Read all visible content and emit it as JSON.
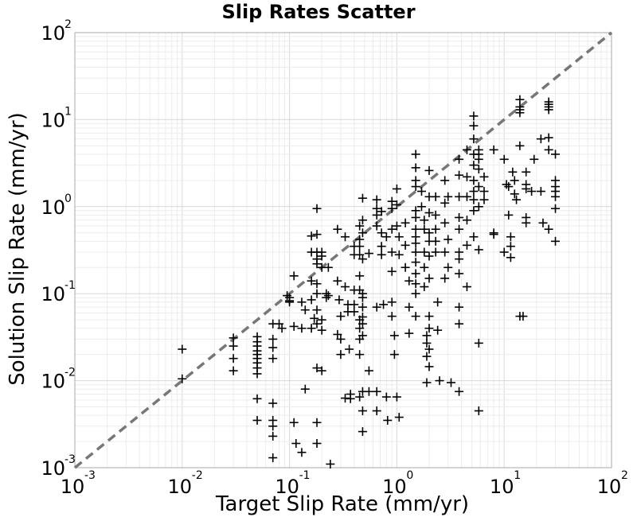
{
  "chart_data": {
    "type": "scatter",
    "title": "Slip Rates Scatter",
    "xlabel": "Target Slip Rate (mm/yr)",
    "ylabel": "Solution Slip Rate (mm/yr)",
    "xscale": "log",
    "yscale": "log",
    "xlim": [
      0.001,
      100
    ],
    "ylim": [
      0.001,
      100
    ],
    "grid": true,
    "marker": "plus",
    "marker_color": "#000000",
    "reference_line": {
      "style": "dashed",
      "color": "#777777",
      "x": [
        0.001,
        100
      ],
      "y": [
        0.001,
        100
      ]
    },
    "x_ticks": [
      {
        "base": "10",
        "exp": "-3"
      },
      {
        "base": "10",
        "exp": "-2"
      },
      {
        "base": "10",
        "exp": "-1"
      },
      {
        "base": "10",
        "exp": "0"
      },
      {
        "base": "10",
        "exp": "1"
      },
      {
        "base": "10",
        "exp": "2"
      }
    ],
    "y_ticks": [
      {
        "base": "10",
        "exp": "-3"
      },
      {
        "base": "10",
        "exp": "-2"
      },
      {
        "base": "10",
        "exp": "-1"
      },
      {
        "base": "10",
        "exp": "0"
      },
      {
        "base": "10",
        "exp": "1"
      },
      {
        "base": "10",
        "exp": "2"
      }
    ],
    "points": [
      [
        0.01,
        0.023
      ],
      [
        0.01,
        0.0105
      ],
      [
        0.03,
        0.031
      ],
      [
        0.03,
        0.025
      ],
      [
        0.03,
        0.018
      ],
      [
        0.03,
        0.013
      ],
      [
        0.05,
        0.032
      ],
      [
        0.05,
        0.028
      ],
      [
        0.05,
        0.025
      ],
      [
        0.05,
        0.022
      ],
      [
        0.05,
        0.02
      ],
      [
        0.05,
        0.018
      ],
      [
        0.05,
        0.016
      ],
      [
        0.05,
        0.014
      ],
      [
        0.05,
        0.012
      ],
      [
        0.05,
        0.0062
      ],
      [
        0.05,
        0.0035
      ],
      [
        0.07,
        0.045
      ],
      [
        0.07,
        0.03
      ],
      [
        0.07,
        0.024
      ],
      [
        0.07,
        0.018
      ],
      [
        0.07,
        0.0055
      ],
      [
        0.07,
        0.0035
      ],
      [
        0.07,
        0.003
      ],
      [
        0.07,
        0.0023
      ],
      [
        0.07,
        0.0013
      ],
      [
        0.08,
        0.045
      ],
      [
        0.085,
        0.04
      ],
      [
        0.095,
        0.095
      ],
      [
        0.1,
        0.09
      ],
      [
        0.1,
        0.083
      ],
      [
        0.1,
        0.08
      ],
      [
        0.11,
        0.16
      ],
      [
        0.11,
        0.042
      ],
      [
        0.11,
        0.0033
      ],
      [
        0.115,
        0.0019
      ],
      [
        0.13,
        0.08
      ],
      [
        0.13,
        0.04
      ],
      [
        0.13,
        0.0015
      ],
      [
        0.14,
        0.065
      ],
      [
        0.14,
        0.008
      ],
      [
        0.16,
        0.46
      ],
      [
        0.16,
        0.3
      ],
      [
        0.16,
        0.14
      ],
      [
        0.16,
        0.085
      ],
      [
        0.16,
        0.04
      ],
      [
        0.17,
        0.052
      ],
      [
        0.18,
        0.95
      ],
      [
        0.18,
        0.48
      ],
      [
        0.18,
        0.3
      ],
      [
        0.18,
        0.25
      ],
      [
        0.18,
        0.22
      ],
      [
        0.18,
        0.13
      ],
      [
        0.18,
        0.1
      ],
      [
        0.18,
        0.065
      ],
      [
        0.18,
        0.045
      ],
      [
        0.18,
        0.014
      ],
      [
        0.18,
        0.0033
      ],
      [
        0.18,
        0.0019
      ],
      [
        0.2,
        0.3
      ],
      [
        0.2,
        0.27
      ],
      [
        0.2,
        0.2
      ],
      [
        0.2,
        0.05
      ],
      [
        0.2,
        0.038
      ],
      [
        0.2,
        0.013
      ],
      [
        0.22,
        0.1
      ],
      [
        0.22,
        0.09
      ],
      [
        0.23,
        0.2
      ],
      [
        0.23,
        0.095
      ],
      [
        0.24,
        0.0011
      ],
      [
        0.28,
        0.55
      ],
      [
        0.28,
        0.14
      ],
      [
        0.28,
        0.034
      ],
      [
        0.29,
        0.085
      ],
      [
        0.3,
        0.055
      ],
      [
        0.3,
        0.03
      ],
      [
        0.3,
        0.02
      ],
      [
        0.33,
        0.45
      ],
      [
        0.33,
        0.12
      ],
      [
        0.33,
        0.0063
      ],
      [
        0.35,
        0.075
      ],
      [
        0.35,
        0.062
      ],
      [
        0.36,
        0.023
      ],
      [
        0.37,
        0.007
      ],
      [
        0.37,
        0.0062
      ],
      [
        0.4,
        0.35
      ],
      [
        0.4,
        0.28
      ],
      [
        0.4,
        0.11
      ],
      [
        0.4,
        0.075
      ],
      [
        0.4,
        0.062
      ],
      [
        0.45,
        0.6
      ],
      [
        0.45,
        0.42
      ],
      [
        0.45,
        0.35
      ],
      [
        0.45,
        0.28
      ],
      [
        0.45,
        0.16
      ],
      [
        0.45,
        0.11
      ],
      [
        0.45,
        0.05
      ],
      [
        0.45,
        0.04
      ],
      [
        0.45,
        0.03
      ],
      [
        0.45,
        0.02
      ],
      [
        0.45,
        0.0065
      ],
      [
        0.48,
        1.25
      ],
      [
        0.48,
        0.7
      ],
      [
        0.48,
        0.5
      ],
      [
        0.48,
        0.25
      ],
      [
        0.48,
        0.1
      ],
      [
        0.48,
        0.09
      ],
      [
        0.48,
        0.07
      ],
      [
        0.48,
        0.054
      ],
      [
        0.48,
        0.045
      ],
      [
        0.48,
        0.033
      ],
      [
        0.48,
        0.0075
      ],
      [
        0.48,
        0.0045
      ],
      [
        0.48,
        0.0026
      ],
      [
        0.55,
        0.29
      ],
      [
        0.55,
        0.013
      ],
      [
        0.55,
        0.0075
      ],
      [
        0.65,
        1.2
      ],
      [
        0.65,
        0.95
      ],
      [
        0.65,
        0.8
      ],
      [
        0.65,
        0.6
      ],
      [
        0.65,
        0.07
      ],
      [
        0.65,
        0.0075
      ],
      [
        0.65,
        0.0045
      ],
      [
        0.72,
        0.88
      ],
      [
        0.72,
        0.5
      ],
      [
        0.72,
        0.35
      ],
      [
        0.72,
        0.28
      ],
      [
        0.75,
        0.075
      ],
      [
        0.8,
        0.45
      ],
      [
        0.8,
        0.0065
      ],
      [
        0.82,
        0.0035
      ],
      [
        0.9,
        1.15
      ],
      [
        0.9,
        0.95
      ],
      [
        0.9,
        0.55
      ],
      [
        0.9,
        0.3
      ],
      [
        0.9,
        0.18
      ],
      [
        0.9,
        0.08
      ],
      [
        0.9,
        0.055
      ],
      [
        0.95,
        0.033
      ],
      [
        0.95,
        0.02
      ],
      [
        1.0,
        0.0065
      ],
      [
        1.0,
        1.6
      ],
      [
        1.0,
        1.05
      ],
      [
        1.0,
        0.6
      ],
      [
        1.05,
        0.45
      ],
      [
        1.05,
        0.28
      ],
      [
        1.05,
        0.0038
      ],
      [
        1.2,
        0.65
      ],
      [
        1.2,
        0.36
      ],
      [
        1.2,
        0.2
      ],
      [
        1.3,
        0.14
      ],
      [
        1.3,
        0.07
      ],
      [
        1.3,
        0.035
      ],
      [
        1.5,
        4.0
      ],
      [
        1.5,
        2.8
      ],
      [
        1.5,
        2.0
      ],
      [
        1.5,
        1.7
      ],
      [
        1.5,
        0.9
      ],
      [
        1.5,
        0.75
      ],
      [
        1.5,
        0.55
      ],
      [
        1.5,
        0.45
      ],
      [
        1.5,
        0.38
      ],
      [
        1.5,
        0.3
      ],
      [
        1.5,
        0.23
      ],
      [
        1.5,
        0.17
      ],
      [
        1.5,
        0.13
      ],
      [
        1.5,
        0.1
      ],
      [
        1.5,
        0.055
      ],
      [
        1.7,
        1.5
      ],
      [
        1.7,
        1.0
      ],
      [
        1.8,
        0.7
      ],
      [
        1.8,
        0.55
      ],
      [
        1.8,
        0.3
      ],
      [
        1.8,
        0.2
      ],
      [
        1.8,
        0.12
      ],
      [
        1.9,
        0.033
      ],
      [
        1.9,
        0.027
      ],
      [
        1.9,
        0.019
      ],
      [
        1.9,
        0.0095
      ],
      [
        2.0,
        2.6
      ],
      [
        2.0,
        1.3
      ],
      [
        2.0,
        0.85
      ],
      [
        2.0,
        0.5
      ],
      [
        2.0,
        0.4
      ],
      [
        2.0,
        0.27
      ],
      [
        2.0,
        0.15
      ],
      [
        2.0,
        0.055
      ],
      [
        2.0,
        0.04
      ],
      [
        2.0,
        0.023
      ],
      [
        2.0,
        0.0145
      ],
      [
        2.3,
        1.3
      ],
      [
        2.3,
        0.8
      ],
      [
        2.3,
        0.55
      ],
      [
        2.3,
        0.4
      ],
      [
        2.3,
        0.3
      ],
      [
        2.4,
        0.08
      ],
      [
        2.4,
        0.038
      ],
      [
        2.5,
        0.01
      ],
      [
        2.8,
        2.0
      ],
      [
        2.8,
        1.1
      ],
      [
        2.8,
        0.65
      ],
      [
        2.8,
        0.3
      ],
      [
        2.8,
        0.15
      ],
      [
        3.0,
        1.3
      ],
      [
        3.0,
        0.42
      ],
      [
        3.0,
        0.2
      ],
      [
        3.2,
        0.0095
      ],
      [
        3.8,
        3.5
      ],
      [
        3.8,
        2.3
      ],
      [
        3.8,
        1.3
      ],
      [
        3.8,
        0.75
      ],
      [
        3.8,
        0.55
      ],
      [
        3.8,
        0.3
      ],
      [
        3.8,
        0.25
      ],
      [
        3.8,
        0.17
      ],
      [
        3.8,
        0.07
      ],
      [
        3.8,
        0.045
      ],
      [
        3.8,
        0.0075
      ],
      [
        4.5,
        4.5
      ],
      [
        4.5,
        2.2
      ],
      [
        4.5,
        1.3
      ],
      [
        4.5,
        0.7
      ],
      [
        4.5,
        0.36
      ],
      [
        4.5,
        0.12
      ],
      [
        5.2,
        11.0
      ],
      [
        5.2,
        8.5
      ],
      [
        5.2,
        6.0
      ],
      [
        5.2,
        4.0
      ],
      [
        5.2,
        3.0
      ],
      [
        5.2,
        2.0
      ],
      [
        5.2,
        1.5
      ],
      [
        5.2,
        1.2
      ],
      [
        5.2,
        0.9
      ],
      [
        5.2,
        0.45
      ],
      [
        5.8,
        4.5
      ],
      [
        5.8,
        4.0
      ],
      [
        5.8,
        3.5
      ],
      [
        5.8,
        2.7
      ],
      [
        5.8,
        1.7
      ],
      [
        5.8,
        1.0
      ],
      [
        5.8,
        0.32
      ],
      [
        5.8,
        0.027
      ],
      [
        5.8,
        0.0045
      ],
      [
        6.5,
        2.2
      ],
      [
        6.5,
        1.5
      ],
      [
        6.5,
        1.2
      ],
      [
        8.0,
        4.5
      ],
      [
        8.0,
        0.5
      ],
      [
        8.0,
        0.48
      ],
      [
        10.0,
        3.5
      ],
      [
        10.0,
        0.3
      ],
      [
        10.5,
        1.8
      ],
      [
        11.0,
        1.7
      ],
      [
        11.0,
        0.8
      ],
      [
        11.5,
        0.45
      ],
      [
        11.5,
        0.35
      ],
      [
        11.5,
        0.26
      ],
      [
        12.0,
        2.5
      ],
      [
        12.5,
        2.0
      ],
      [
        12.5,
        1.4
      ],
      [
        13.0,
        1.2
      ],
      [
        14.0,
        17.0
      ],
      [
        14.0,
        14.0
      ],
      [
        14.0,
        13.0
      ],
      [
        14.0,
        12.0
      ],
      [
        14.0,
        5.0
      ],
      [
        14.0,
        0.055
      ],
      [
        15.0,
        0.055
      ],
      [
        16.0,
        2.5
      ],
      [
        16.0,
        1.8
      ],
      [
        16.0,
        1.6
      ],
      [
        16.0,
        0.75
      ],
      [
        16.0,
        0.65
      ],
      [
        18.0,
        1.5
      ],
      [
        19.0,
        3.5
      ],
      [
        22.0,
        6.0
      ],
      [
        22.0,
        1.5
      ],
      [
        23.0,
        0.65
      ],
      [
        26.0,
        16.0
      ],
      [
        26.0,
        15.0
      ],
      [
        26.0,
        14.0
      ],
      [
        26.0,
        13.0
      ],
      [
        26.0,
        6.2
      ],
      [
        26.0,
        4.5
      ],
      [
        26.0,
        0.55
      ],
      [
        30.0,
        4.0
      ],
      [
        30.0,
        2.0
      ],
      [
        30.0,
        1.7
      ],
      [
        30.0,
        1.5
      ],
      [
        30.0,
        1.3
      ],
      [
        30.0,
        0.95
      ],
      [
        30.0,
        0.4
      ]
    ]
  }
}
